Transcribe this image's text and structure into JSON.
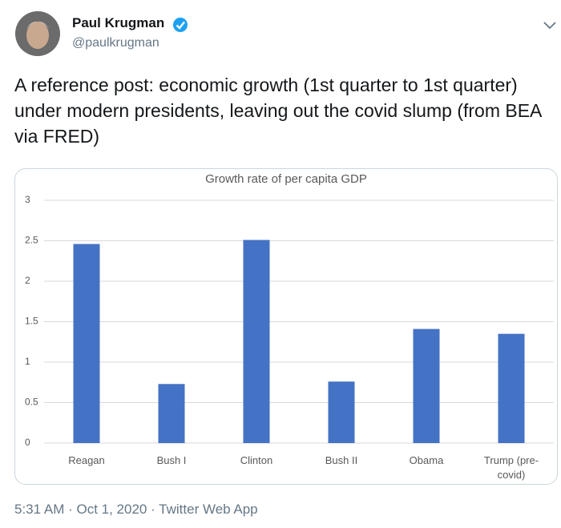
{
  "header": {
    "name": "Paul Krugman",
    "handle": "@paulkrugman"
  },
  "tweet": {
    "text": "A reference post: economic growth (1st quarter to 1st quarter) under modern presidents, leaving out the covid slump (from BEA via FRED)",
    "timestamp": "5:31 AM · Oct 1, 2020 · Twitter Web App"
  },
  "chart_data": {
    "type": "bar",
    "title": "Growth rate of per capita GDP",
    "categories": [
      "Reagan",
      "Bush I",
      "Clinton",
      "Bush II",
      "Obama",
      "Trump (pre-covid)"
    ],
    "values": [
      2.46,
      0.73,
      2.51,
      0.76,
      1.41,
      1.35
    ],
    "color": "#4472c4",
    "ylim": [
      0,
      3
    ],
    "yticks": [
      0,
      0.5,
      1,
      1.5,
      2,
      2.5,
      3
    ],
    "grid": true
  }
}
